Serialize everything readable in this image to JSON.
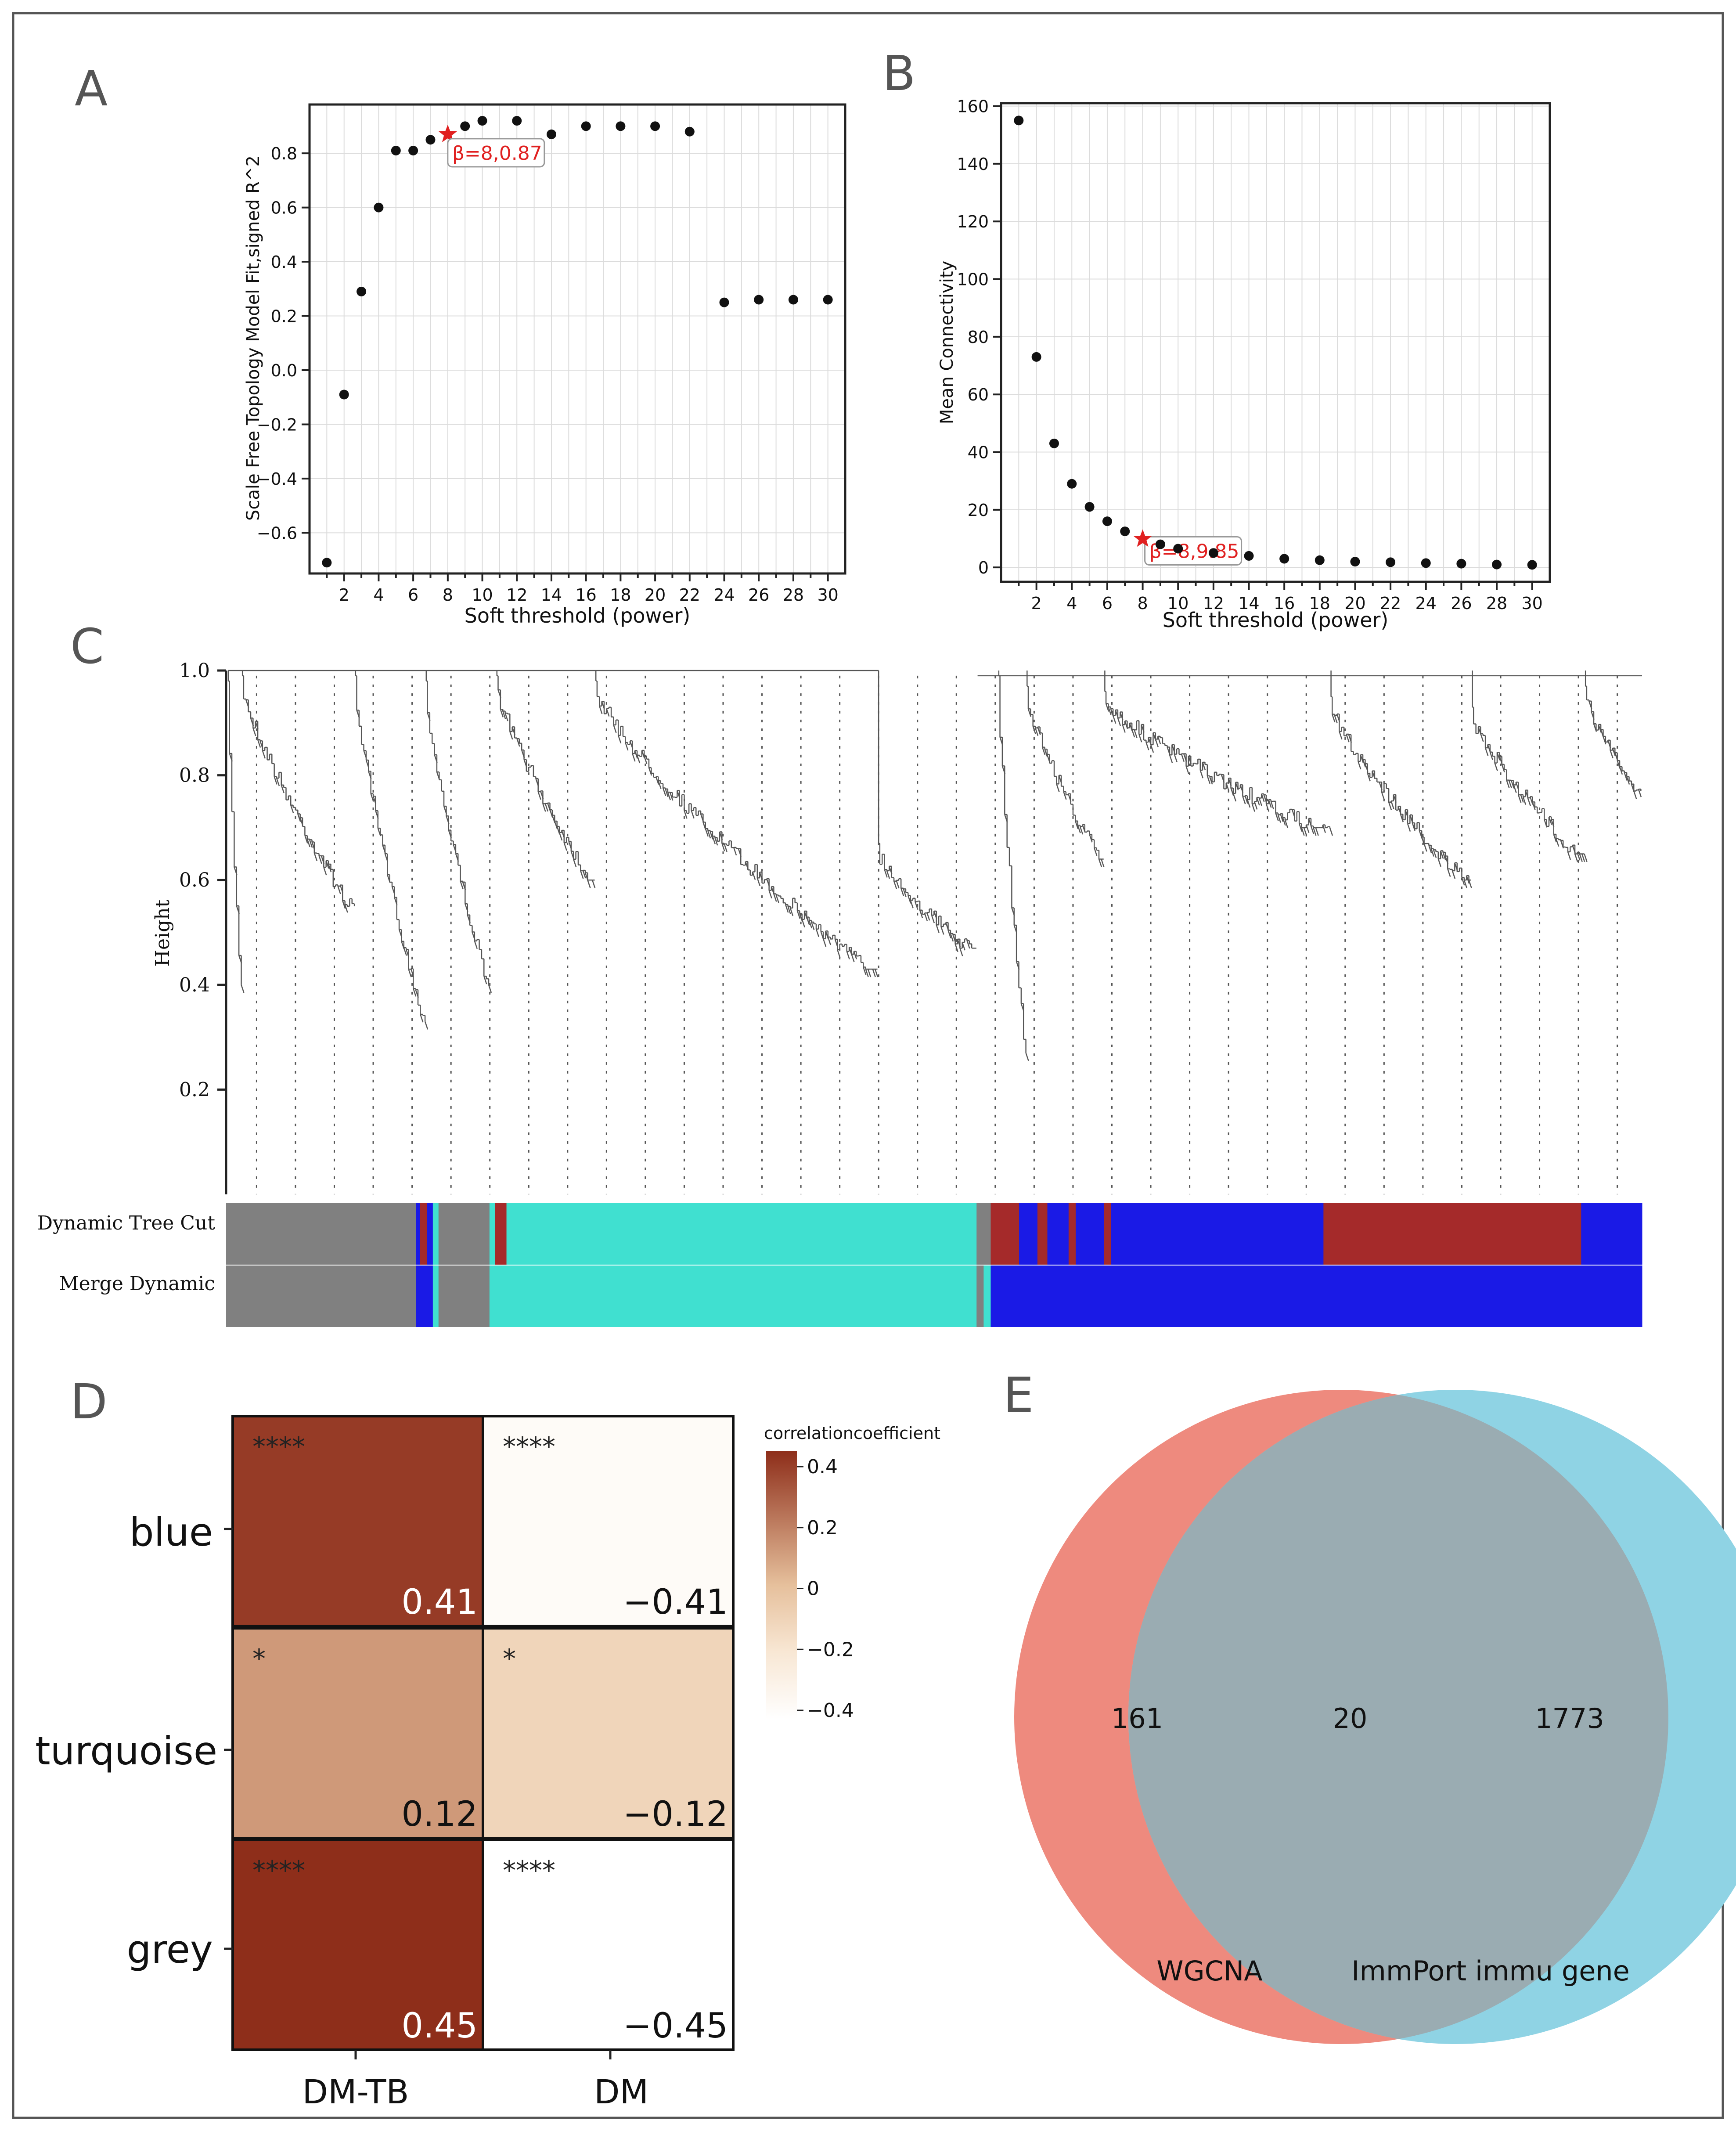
{
  "panels": {
    "a": "A",
    "b": "B",
    "c": "C",
    "d": "D",
    "e": "E"
  },
  "chart_data": [
    {
      "id": "A",
      "type": "scatter",
      "xlabel": "Soft threshold (power)",
      "ylabel": "Scale Free Topology Model Fit,signed R^2",
      "xlim": [
        0,
        31
      ],
      "ylim": [
        -0.75,
        0.98
      ],
      "xticks": [
        2,
        4,
        6,
        8,
        10,
        12,
        14,
        16,
        18,
        20,
        22,
        24,
        26,
        28,
        30
      ],
      "yticks": [
        -0.6,
        -0.4,
        -0.2,
        0.0,
        0.2,
        0.4,
        0.6,
        0.8
      ],
      "ytick_labels": [
        "−0.6",
        "−0.4",
        "−0.2",
        "0.0",
        "0.2",
        "0.4",
        "0.6",
        "0.8"
      ],
      "x": [
        1,
        2,
        3,
        4,
        5,
        6,
        7,
        8,
        9,
        10,
        12,
        14,
        16,
        18,
        20,
        22,
        24,
        26,
        28,
        30
      ],
      "y": [
        -0.71,
        -0.09,
        0.29,
        0.6,
        0.81,
        0.81,
        0.85,
        0.87,
        0.9,
        0.92,
        0.92,
        0.87,
        0.9,
        0.9,
        0.9,
        0.88,
        0.25,
        0.26,
        0.26,
        0.26
      ],
      "highlight": {
        "x": 8,
        "y": 0.87,
        "label": "β=8,0.87",
        "color": "#e02020"
      }
    },
    {
      "id": "B",
      "type": "scatter",
      "xlabel": "Soft threshold (power)",
      "ylabel": "Mean Connectivity",
      "xlim": [
        0,
        31
      ],
      "ylim": [
        -5,
        161
      ],
      "xticks": [
        2,
        4,
        6,
        8,
        10,
        12,
        14,
        16,
        18,
        20,
        22,
        24,
        26,
        28,
        30
      ],
      "yticks": [
        0,
        20,
        40,
        60,
        80,
        100,
        120,
        140,
        160
      ],
      "ytick_labels": [
        "0",
        "20",
        "40",
        "60",
        "80",
        "100",
        "120",
        "140",
        "160"
      ],
      "x": [
        1,
        2,
        3,
        4,
        5,
        6,
        7,
        8,
        9,
        10,
        12,
        14,
        16,
        18,
        20,
        22,
        24,
        26,
        28,
        30
      ],
      "y": [
        155,
        73,
        43,
        29,
        21,
        16,
        12.5,
        9.85,
        8,
        6.5,
        5,
        4,
        3,
        2.5,
        2,
        1.8,
        1.5,
        1.3,
        1,
        0.9
      ],
      "highlight": {
        "x": 8,
        "y": 9.85,
        "label": "β=8,9.85",
        "color": "#e02020"
      }
    },
    {
      "id": "C",
      "type": "dendrogram",
      "ylabel": "Height",
      "ylim": [
        0,
        1.0
      ],
      "yticks": [
        0.2,
        0.4,
        0.6,
        0.8,
        1.0
      ],
      "ytick_labels": [
        "0.2",
        "0.4",
        "0.6",
        "0.8",
        "1.0"
      ],
      "color_rows": [
        {
          "label": "Dynamic Tree Cut",
          "segments": [
            {
              "from": 0.0,
              "to": 0.134,
              "color": "#808080"
            },
            {
              "from": 0.134,
              "to": 0.137,
              "color": "#1a1ae6"
            },
            {
              "from": 0.137,
              "to": 0.142,
              "color": "#a52a2a"
            },
            {
              "from": 0.142,
              "to": 0.146,
              "color": "#1a1ae6"
            },
            {
              "from": 0.146,
              "to": 0.15,
              "color": "#40e0d0"
            },
            {
              "from": 0.15,
              "to": 0.186,
              "color": "#808080"
            },
            {
              "from": 0.186,
              "to": 0.19,
              "color": "#40e0d0"
            },
            {
              "from": 0.19,
              "to": 0.198,
              "color": "#a52a2a"
            },
            {
              "from": 0.198,
              "to": 0.53,
              "color": "#40e0d0"
            },
            {
              "from": 0.53,
              "to": 0.54,
              "color": "#808080"
            },
            {
              "from": 0.54,
              "to": 0.56,
              "color": "#a52a2a"
            },
            {
              "from": 0.56,
              "to": 0.573,
              "color": "#1a1ae6"
            },
            {
              "from": 0.573,
              "to": 0.58,
              "color": "#a52a2a"
            },
            {
              "from": 0.58,
              "to": 0.595,
              "color": "#1a1ae6"
            },
            {
              "from": 0.595,
              "to": 0.6,
              "color": "#a52a2a"
            },
            {
              "from": 0.6,
              "to": 0.62,
              "color": "#1a1ae6"
            },
            {
              "from": 0.62,
              "to": 0.625,
              "color": "#a52a2a"
            },
            {
              "from": 0.625,
              "to": 0.775,
              "color": "#1a1ae6"
            },
            {
              "from": 0.775,
              "to": 0.957,
              "color": "#a52a2a"
            },
            {
              "from": 0.957,
              "to": 1.0,
              "color": "#1a1ae6"
            }
          ]
        },
        {
          "label": "Merge Dynamic",
          "segments": [
            {
              "from": 0.0,
              "to": 0.134,
              "color": "#808080"
            },
            {
              "from": 0.134,
              "to": 0.146,
              "color": "#1a1ae6"
            },
            {
              "from": 0.146,
              "to": 0.15,
              "color": "#40e0d0"
            },
            {
              "from": 0.15,
              "to": 0.186,
              "color": "#808080"
            },
            {
              "from": 0.186,
              "to": 0.53,
              "color": "#40e0d0"
            },
            {
              "from": 0.53,
              "to": 0.535,
              "color": "#808080"
            },
            {
              "from": 0.535,
              "to": 0.54,
              "color": "#40e0d0"
            },
            {
              "from": 0.54,
              "to": 1.0,
              "color": "#1a1ae6"
            }
          ]
        }
      ]
    },
    {
      "id": "D",
      "type": "heatmap",
      "rows": [
        "blue",
        "turquoise",
        "grey"
      ],
      "columns": [
        "DM-TB",
        "DM"
      ],
      "values": [
        [
          0.41,
          -0.41
        ],
        [
          0.12,
          -0.12
        ],
        [
          0.45,
          -0.45
        ]
      ],
      "value_labels": [
        [
          "0.41",
          "−0.41"
        ],
        [
          "0.12",
          "−0.12"
        ],
        [
          "0.45",
          "−0.45"
        ]
      ],
      "significance": [
        [
          "****",
          "****"
        ],
        [
          "*",
          "*"
        ],
        [
          "****",
          "****"
        ]
      ],
      "legend_title": "correlationcoefficient",
      "legend_ticks": [
        0.4,
        0.2,
        0,
        -0.2,
        -0.4
      ],
      "legend_tick_labels": [
        "0.4",
        "0.2",
        "0",
        "−0.2",
        "−0.4"
      ],
      "range": [
        -0.45,
        0.45
      ]
    },
    {
      "id": "E",
      "type": "venn",
      "sets": [
        {
          "name": "WGCNA",
          "only": "161",
          "color": "#ee8a7e"
        },
        {
          "name": "ImmPort immu gene",
          "only": "1773",
          "color": "#8fd3e4"
        }
      ],
      "intersection": "20",
      "overlap_color": "#9aacb2"
    }
  ],
  "colors": {
    "frame": "#555555",
    "dot": "#111111",
    "highlight": "#e02020",
    "grid": "#dcdcdc"
  }
}
